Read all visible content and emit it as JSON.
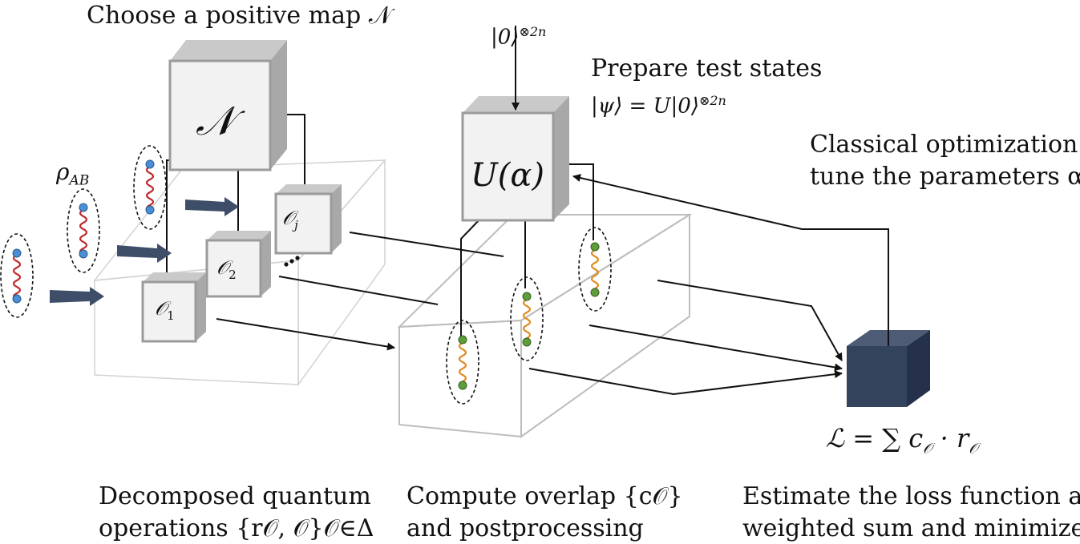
{
  "title_left": "Choose a positive map 𝒩",
  "rho_label": "ρ",
  "rho_sub": "AB",
  "map_box": "𝒩",
  "op1": "𝒪",
  "op1_sub": "1",
  "op2": "𝒪",
  "op2_sub": "2",
  "opj": "𝒪",
  "opj_sub": "j",
  "ellipsis": "••",
  "input_state": "|0⟩",
  "input_exp": "⊗2n",
  "prepare_title": "Prepare test states",
  "prepare_eq": "|ψ⟩ = U|0⟩",
  "prepare_exp": "⊗2n",
  "unitary_label": "U(α)",
  "optim_line1": "Classical optimization to",
  "optim_line2": "tune the parameters α",
  "loss_eq": "ℒ = ∑ c",
  "loss_eq_tail": " · r",
  "loss_sub": "𝒪",
  "bottom_left_line1": "Decomposed quantum",
  "bottom_left_line2": "operations {r𝒪, 𝒪}𝒪∈Δ",
  "bottom_mid_line1": "Compute overlap {c𝒪}",
  "bottom_mid_line2": "and postprocessing",
  "bottom_right_line1": "Estimate the loss function as a",
  "bottom_right_line2": "weighted sum and minimize it",
  "colors": {
    "box_front": "#f2f2f2",
    "box_side": "#a8a8a8",
    "box_top": "#c9c9c9",
    "dark_cube": "#34435c",
    "arrow_fat": "#3e4d68",
    "wave_red": "#c0282a",
    "wave_orange": "#e08a1e",
    "dot_blue": "#4a8fd6",
    "dot_green": "#5e9e3a"
  }
}
